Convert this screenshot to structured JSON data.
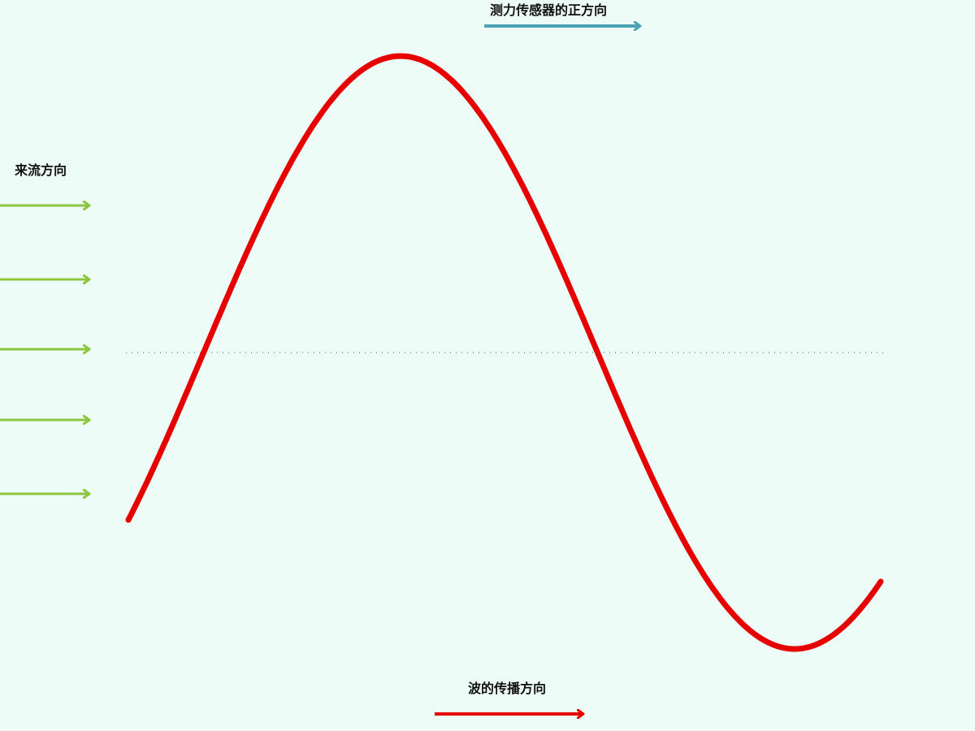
{
  "labels": {
    "sensor_positive_direction": "测力传感器的正方向",
    "incoming_flow_direction": "来流方向",
    "wave_propagation_direction": "波的传播方向"
  },
  "colors": {
    "background": "#eefcf8",
    "wave": "#e60000",
    "flow_arrows": "#8cc63f",
    "sensor_arrow": "#4aa3b5",
    "propagation_arrow": "#e60000",
    "midline": "#555555"
  },
  "flow_arrow_count": 5,
  "wave": {
    "shape": "sine",
    "cycles": 1
  }
}
